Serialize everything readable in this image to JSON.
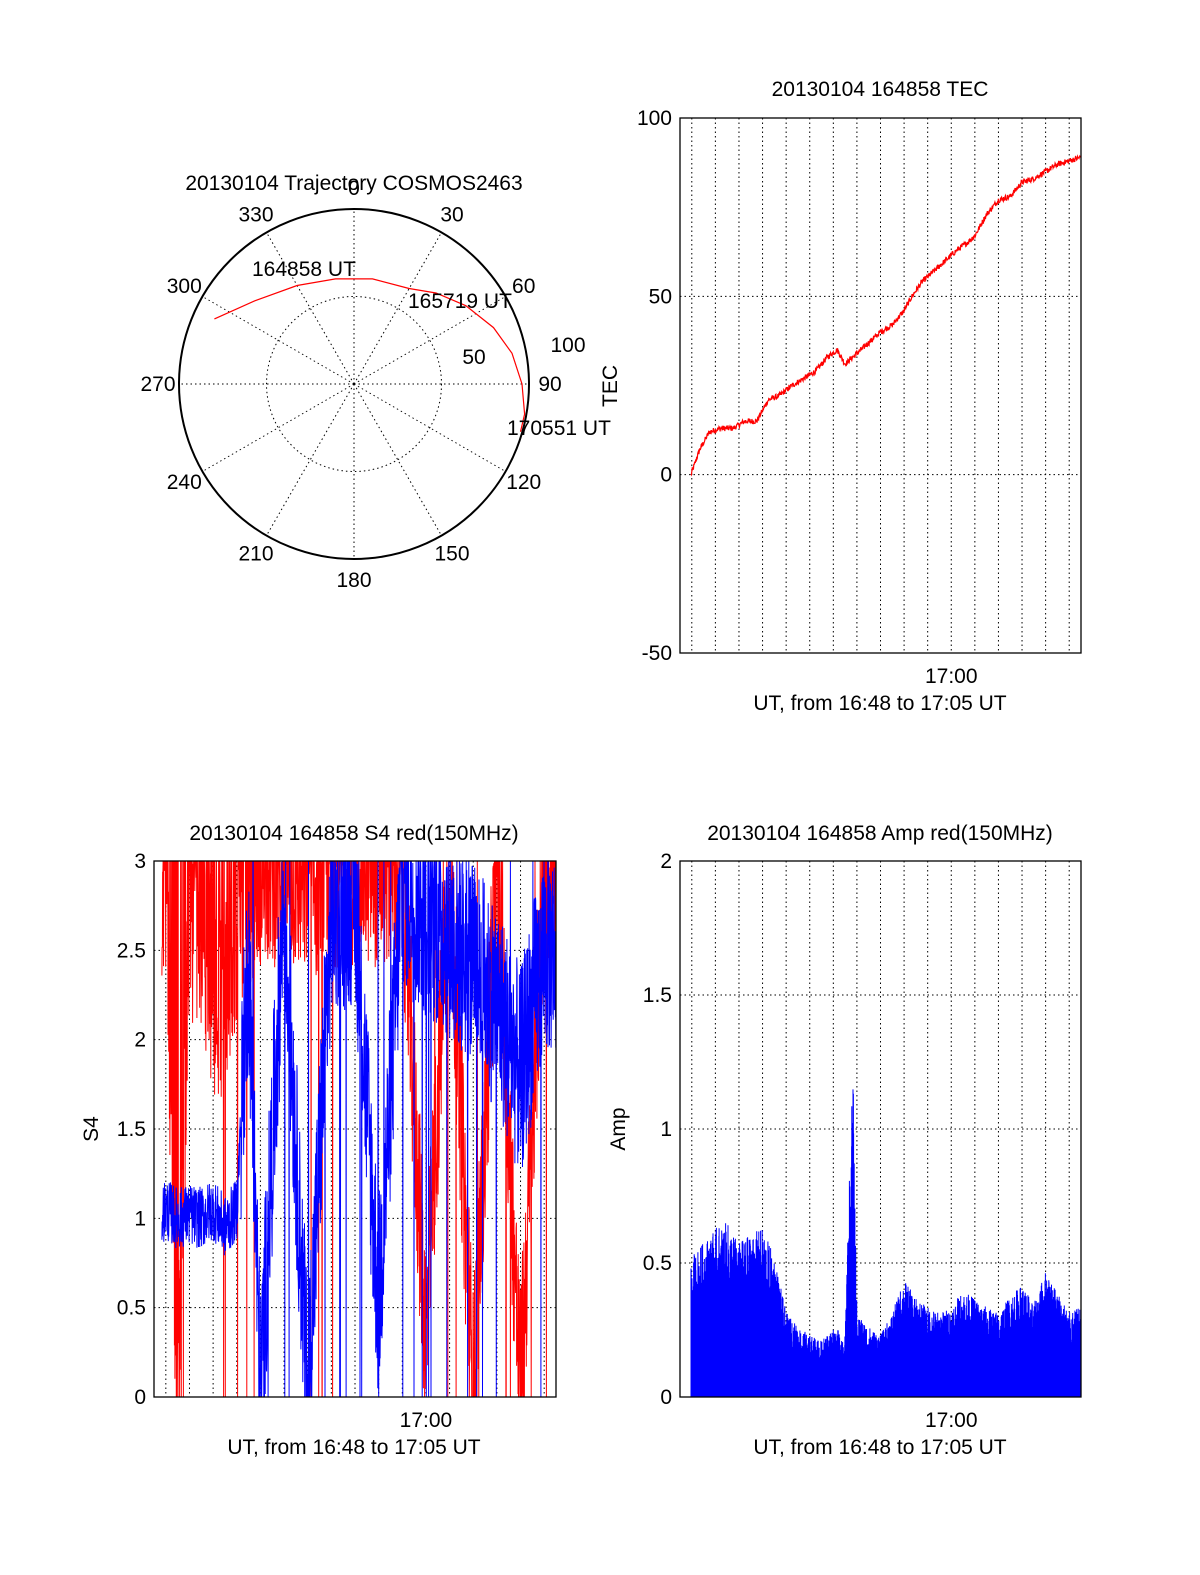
{
  "chart_data": [
    {
      "type": "polar",
      "title": "20130104 Trajectory COSMOS2463",
      "azimuth_labels": [
        "0",
        "30",
        "60",
        "90",
        "120",
        "150",
        "180",
        "210",
        "240",
        "270",
        "300",
        "330"
      ],
      "radius_labels": [
        "50",
        "100"
      ],
      "rlim": [
        0,
        100
      ],
      "grid": true,
      "series": [
        {
          "color": "#ff0000",
          "points": [
            {
              "az": 295,
              "zen": 88
            },
            {
              "az": 310,
              "zen": 74
            },
            {
              "az": 330,
              "zen": 65
            },
            {
              "az": 350,
              "zen": 61
            },
            {
              "az": 10,
              "zen": 61
            },
            {
              "az": 30,
              "zen": 63
            },
            {
              "az": 42,
              "zen": 70
            },
            {
              "az": 55,
              "zen": 78
            },
            {
              "az": 68,
              "zen": 86
            },
            {
              "az": 79,
              "zen": 92
            },
            {
              "az": 90,
              "zen": 96
            },
            {
              "az": 100,
              "zen": 99
            },
            {
              "az": 106,
              "zen": 99
            }
          ]
        }
      ],
      "annotations": [
        {
          "text": "164858 UT",
          "az": 303,
          "zen": 118
        },
        {
          "text": "165719 UT",
          "az": 43,
          "zen": 92
        },
        {
          "text": "170551 UT",
          "az": 104,
          "zen": 138
        }
      ]
    },
    {
      "type": "line",
      "title": "20130104 164858 TEC",
      "xlabel": "UT, from 16:48 to 17:05 UT",
      "ylabel": "TEC",
      "xlim": [
        "16:48:30",
        "17:05:30"
      ],
      "ylim": [
        -50,
        100
      ],
      "yticks": [
        -50,
        0,
        50,
        100
      ],
      "xtick_labels": [
        "17:00"
      ],
      "grid": true,
      "series": [
        {
          "color": "#ff0000",
          "x": [
            "16:48:58",
            "16:49:20",
            "16:49:45",
            "16:50:15",
            "16:50:45",
            "16:51:15",
            "16:51:45",
            "16:52:15",
            "16:52:40",
            "16:53:15",
            "16:53:45",
            "16:54:15",
            "16:54:45",
            "16:55:10",
            "16:55:30",
            "16:56:00",
            "16:56:30",
            "16:57:00",
            "16:57:30",
            "16:58:00",
            "16:58:20",
            "16:58:45",
            "16:59:15",
            "16:59:45",
            "17:00:15",
            "17:00:40",
            "17:01:00",
            "17:01:30",
            "17:02:00",
            "17:02:30",
            "17:03:00",
            "17:03:30",
            "17:04:00",
            "17:04:30",
            "17:05:00",
            "17:05:30"
          ],
          "y": [
            0,
            7,
            12,
            13,
            13,
            15,
            15,
            21,
            22,
            25,
            27,
            29,
            33,
            35,
            31,
            34,
            37,
            40,
            42,
            46,
            50,
            54,
            57,
            60,
            63,
            65,
            67,
            73,
            77,
            78,
            82,
            83,
            85,
            87,
            88,
            89
          ]
        }
      ]
    },
    {
      "type": "line",
      "title": "20130104 164858 S4 red(150MHz)",
      "xlabel": "UT, from 16:48 to 17:05 UT",
      "ylabel": "S4",
      "xlim": [
        "16:48:30",
        "17:05:30"
      ],
      "ylim": [
        0,
        3
      ],
      "yticks": [
        0,
        0.5,
        1,
        1.5,
        2,
        2.5,
        3
      ],
      "xtick_labels": [
        "17:00"
      ],
      "grid": true,
      "series": [
        {
          "color": "#ff0000",
          "x": [
            "16:48:30",
            "16:49:00",
            "16:49:30",
            "16:50:00",
            "16:50:30",
            "16:51:00",
            "16:51:30",
            "16:52:00",
            "16:52:30",
            "16:53:00",
            "16:54:00",
            "16:55:00",
            "16:56:00",
            "16:57:00",
            "16:58:00",
            "16:59:00",
            "17:00:00",
            "17:01:00",
            "17:02:00",
            "17:03:00",
            "17:04:00",
            "17:05:00"
          ],
          "y": [
            2.8,
            2.9,
            0,
            2.7,
            2.6,
            2.3,
            2.2,
            2.7,
            2.9,
            3.0,
            3.0,
            2.9,
            3.0,
            3.0,
            3.0,
            3.0,
            0.3,
            3.0,
            0,
            3.0,
            0,
            3.0
          ]
        },
        {
          "color": "#0000ff",
          "x": [
            "16:48:30",
            "16:49:00",
            "16:49:30",
            "16:50:00",
            "16:50:30",
            "16:51:00",
            "16:51:30",
            "16:52:00",
            "16:52:30",
            "16:53:00",
            "16:54:00",
            "16:55:00",
            "16:56:00",
            "16:57:00",
            "16:58:00",
            "16:59:00",
            "17:00:00",
            "17:01:00",
            "17:02:00",
            "17:03:00",
            "17:04:00",
            "17:05:00"
          ],
          "y": [
            1.0,
            1.05,
            1.0,
            1.02,
            1.0,
            1.05,
            0.95,
            1.05,
            2.5,
            0,
            2.8,
            0,
            2.7,
            2.8,
            0.5,
            2.9,
            2.7,
            2.6,
            2.4,
            2.2,
            1.8,
            2.5
          ]
        }
      ]
    },
    {
      "type": "line",
      "title": "20130104 164858 Amp red(150MHz)",
      "xlabel": "UT, from 16:48 to 17:05 UT",
      "ylabel": "Amp",
      "xlim": [
        "16:48:30",
        "17:05:30"
      ],
      "ylim": [
        0,
        2
      ],
      "yticks": [
        0,
        0.5,
        1,
        1.5,
        2
      ],
      "xtick_labels": [
        "17:00"
      ],
      "grid": true,
      "series": [
        {
          "color": "#0000ff",
          "x": [
            "16:48:58",
            "16:49:30",
            "16:50:00",
            "16:50:30",
            "16:51:00",
            "16:51:30",
            "16:52:00",
            "16:52:30",
            "16:53:00",
            "16:53:30",
            "16:54:00",
            "16:54:30",
            "16:55:00",
            "16:55:30",
            "16:55:50",
            "16:56:00",
            "16:56:30",
            "16:57:00",
            "16:57:30",
            "16:58:00",
            "16:58:30",
            "16:59:00",
            "16:59:30",
            "17:00:00",
            "17:00:30",
            "17:01:00",
            "17:01:30",
            "17:02:00",
            "17:02:30",
            "17:03:00",
            "17:03:30",
            "17:04:00",
            "17:04:30",
            "17:05:00",
            "17:05:30"
          ],
          "y": [
            0.5,
            0.55,
            0.6,
            0.62,
            0.55,
            0.58,
            0.6,
            0.5,
            0.3,
            0.25,
            0.22,
            0.2,
            0.25,
            0.22,
            1.25,
            0.3,
            0.25,
            0.22,
            0.3,
            0.42,
            0.35,
            0.32,
            0.3,
            0.32,
            0.38,
            0.35,
            0.32,
            0.3,
            0.36,
            0.4,
            0.33,
            0.45,
            0.38,
            0.3,
            0.32
          ]
        }
      ]
    }
  ]
}
